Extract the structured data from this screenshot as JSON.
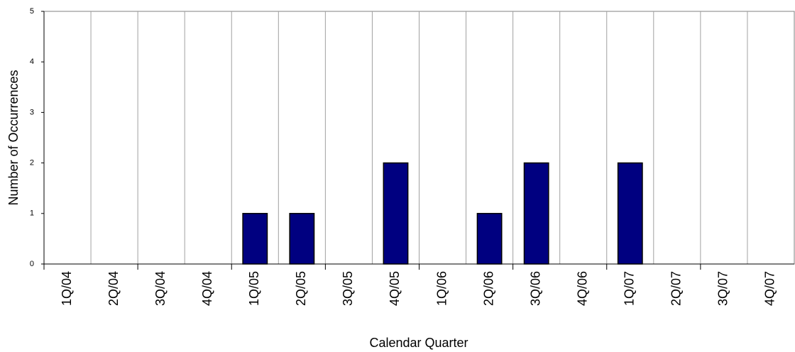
{
  "chart_data": {
    "type": "bar",
    "x_label": "Calendar Quarter",
    "y_label": "Number of Occurrences",
    "categories": [
      "1Q/04",
      "2Q/04",
      "3Q/04",
      "4Q/04",
      "1Q/05",
      "2Q/05",
      "3Q/05",
      "4Q/05",
      "1Q/06",
      "2Q/06",
      "3Q/06",
      "4Q/06",
      "1Q/07",
      "2Q/07",
      "3Q/07",
      "4Q/07"
    ],
    "values": [
      0,
      0,
      0,
      0,
      1,
      1,
      0,
      2,
      0,
      1,
      2,
      0,
      2,
      0,
      0,
      0
    ],
    "color": "#000080",
    "ylim": [
      0,
      5
    ],
    "yticks": [
      0,
      1,
      2,
      3,
      4,
      5
    ],
    "grid": true
  }
}
